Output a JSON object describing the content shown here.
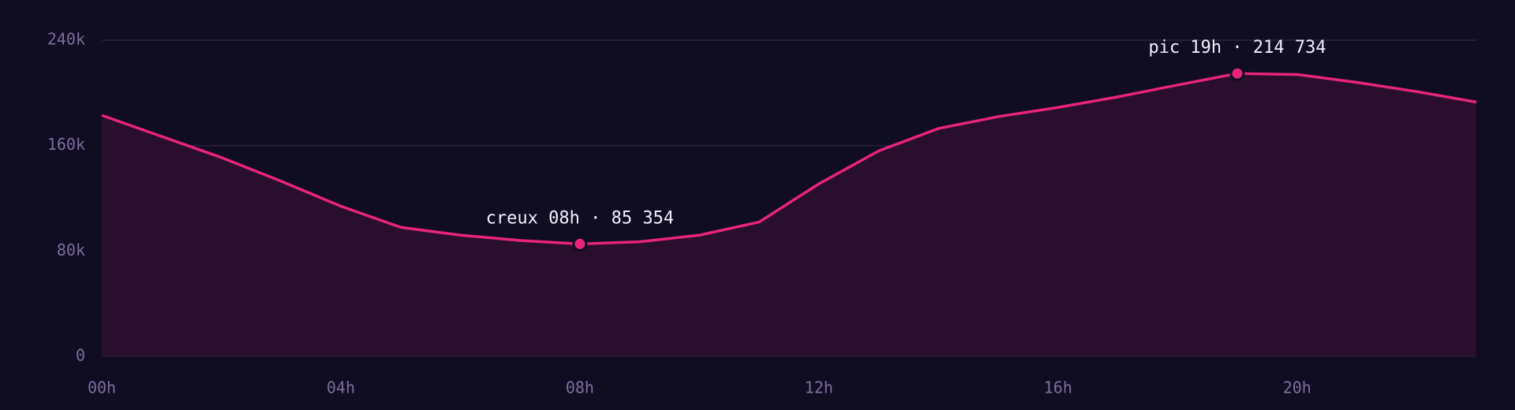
{
  "chart_data": {
    "type": "area",
    "categories": [
      "00h",
      null,
      null,
      null,
      "04h",
      null,
      null,
      null,
      "08h",
      null,
      null,
      null,
      "12h",
      null,
      null,
      null,
      "16h",
      null,
      null,
      null,
      "20h",
      null,
      null,
      null
    ],
    "values": [
      183000,
      167000,
      151000,
      133000,
      114000,
      98000,
      92000,
      88000,
      85354,
      87000,
      92000,
      102000,
      131000,
      156000,
      173000,
      182000,
      189000,
      197000,
      206000,
      214734,
      214000,
      208000,
      201000,
      193000
    ],
    "color": "#e8247c",
    "ylim": [
      0,
      240000
    ],
    "yticks": [
      0,
      {
        "value": 80000,
        "label": "80k"
      },
      {
        "value": 160000,
        "label": "160k"
      },
      {
        "value": 240000,
        "label": "240k"
      }
    ],
    "grid": true,
    "annotations": {
      "min": "creux 08h · 85 354",
      "max": "pic 19h · 214 734"
    }
  }
}
